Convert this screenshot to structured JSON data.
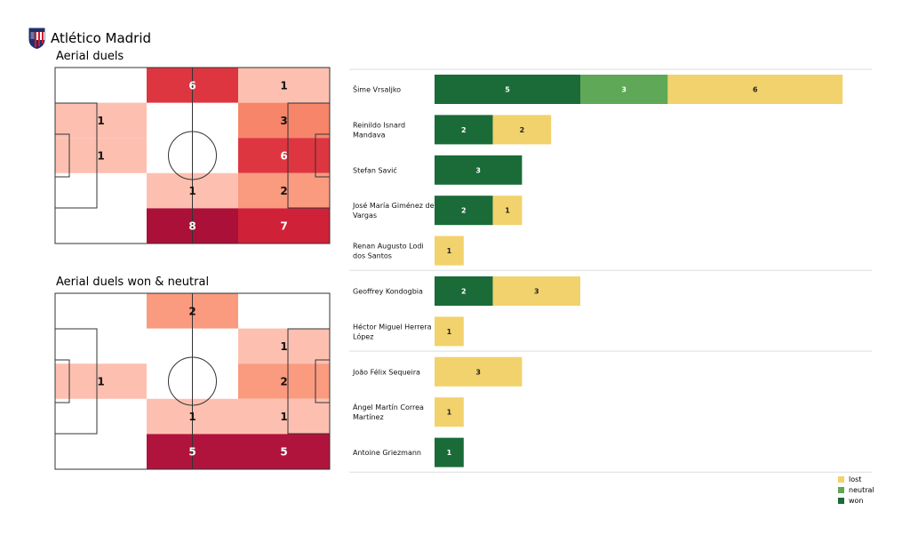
{
  "team": {
    "name": "Atlético Madrid",
    "crest_colors": [
      "#d7192e",
      "#ffffff",
      "#1f2f6b"
    ]
  },
  "sections": {
    "aerial_duels_title": "Aerial duels",
    "won_neutral_title": "Aerial duels won & neutral"
  },
  "colors": {
    "won": "#1a6b38",
    "neutral": "#5ea857",
    "lost": "#f2d26c",
    "heat_1": "#fdc0b0",
    "heat_2": "#fa9a7f",
    "heat_3": "#f7856a",
    "heat_5": "#b0143c",
    "heat_6": "#de3640",
    "heat_7": "#cf2138",
    "heat_8": "#ab1039"
  },
  "legend": {
    "lost": "lost",
    "neutral": "neutral",
    "won": "won"
  },
  "chart_data": [
    {
      "type": "heatmap",
      "title": "Aerial duels",
      "cols": 3,
      "rows": 5,
      "cells": [
        {
          "col": 1,
          "row": 0,
          "value": 6
        },
        {
          "col": 2,
          "row": 0,
          "value": 1
        },
        {
          "col": 0,
          "row": 1,
          "value": 1
        },
        {
          "col": 2,
          "row": 1,
          "value": 3
        },
        {
          "col": 0,
          "row": 2,
          "value": 1
        },
        {
          "col": 2,
          "row": 2,
          "value": 6
        },
        {
          "col": 1,
          "row": 3,
          "value": 1
        },
        {
          "col": 2,
          "row": 3,
          "value": 2
        },
        {
          "col": 1,
          "row": 4,
          "value": 8
        },
        {
          "col": 2,
          "row": 4,
          "value": 7
        }
      ]
    },
    {
      "type": "heatmap",
      "title": "Aerial duels won & neutral",
      "cols": 3,
      "rows": 5,
      "cells": [
        {
          "col": 1,
          "row": 0,
          "value": 2
        },
        {
          "col": 2,
          "row": 1,
          "value": 1
        },
        {
          "col": 0,
          "row": 2,
          "value": 1
        },
        {
          "col": 2,
          "row": 2,
          "value": 2
        },
        {
          "col": 1,
          "row": 3,
          "value": 1
        },
        {
          "col": 2,
          "row": 3,
          "value": 1
        },
        {
          "col": 1,
          "row": 4,
          "value": 5
        },
        {
          "col": 2,
          "row": 4,
          "value": 5
        }
      ]
    },
    {
      "type": "bar",
      "orientation": "horizontal",
      "stacked": true,
      "groups": [
        5,
        2,
        3
      ],
      "categories": [
        "Šime Vrsaljko",
        "Reinildo Isnard Mandava",
        "Stefan Savić",
        "José María Giménez de Vargas",
        "Renan Augusto Lodi dos Santos",
        "Geoffrey Kondogbia",
        "Héctor Miguel Herrera López",
        "João Félix Sequeira",
        "Ángel Martín Correa Martínez",
        "Antoine Griezmann"
      ],
      "category_lines": [
        [
          "Šime Vrsaljko"
        ],
        [
          "Reinildo Isnard",
          "Mandava"
        ],
        [
          "Stefan Savić"
        ],
        [
          "José María Giménez de",
          "Vargas"
        ],
        [
          "Renan Augusto Lodi",
          "dos Santos"
        ],
        [
          "Geoffrey Kondogbia"
        ],
        [
          "Héctor Miguel Herrera",
          "López"
        ],
        [
          "João Félix Sequeira"
        ],
        [
          "Ángel Martín Correa",
          "Martínez"
        ],
        [
          "Antoine Griezmann"
        ]
      ],
      "series": [
        {
          "name": "won",
          "values": [
            5,
            2,
            3,
            2,
            0,
            2,
            0,
            0,
            0,
            1
          ]
        },
        {
          "name": "neutral",
          "values": [
            3,
            0,
            0,
            0,
            0,
            0,
            0,
            0,
            0,
            0
          ]
        },
        {
          "name": "lost",
          "values": [
            6,
            2,
            0,
            1,
            1,
            3,
            1,
            3,
            1,
            0
          ]
        }
      ],
      "xlim": [
        0,
        14
      ]
    }
  ]
}
